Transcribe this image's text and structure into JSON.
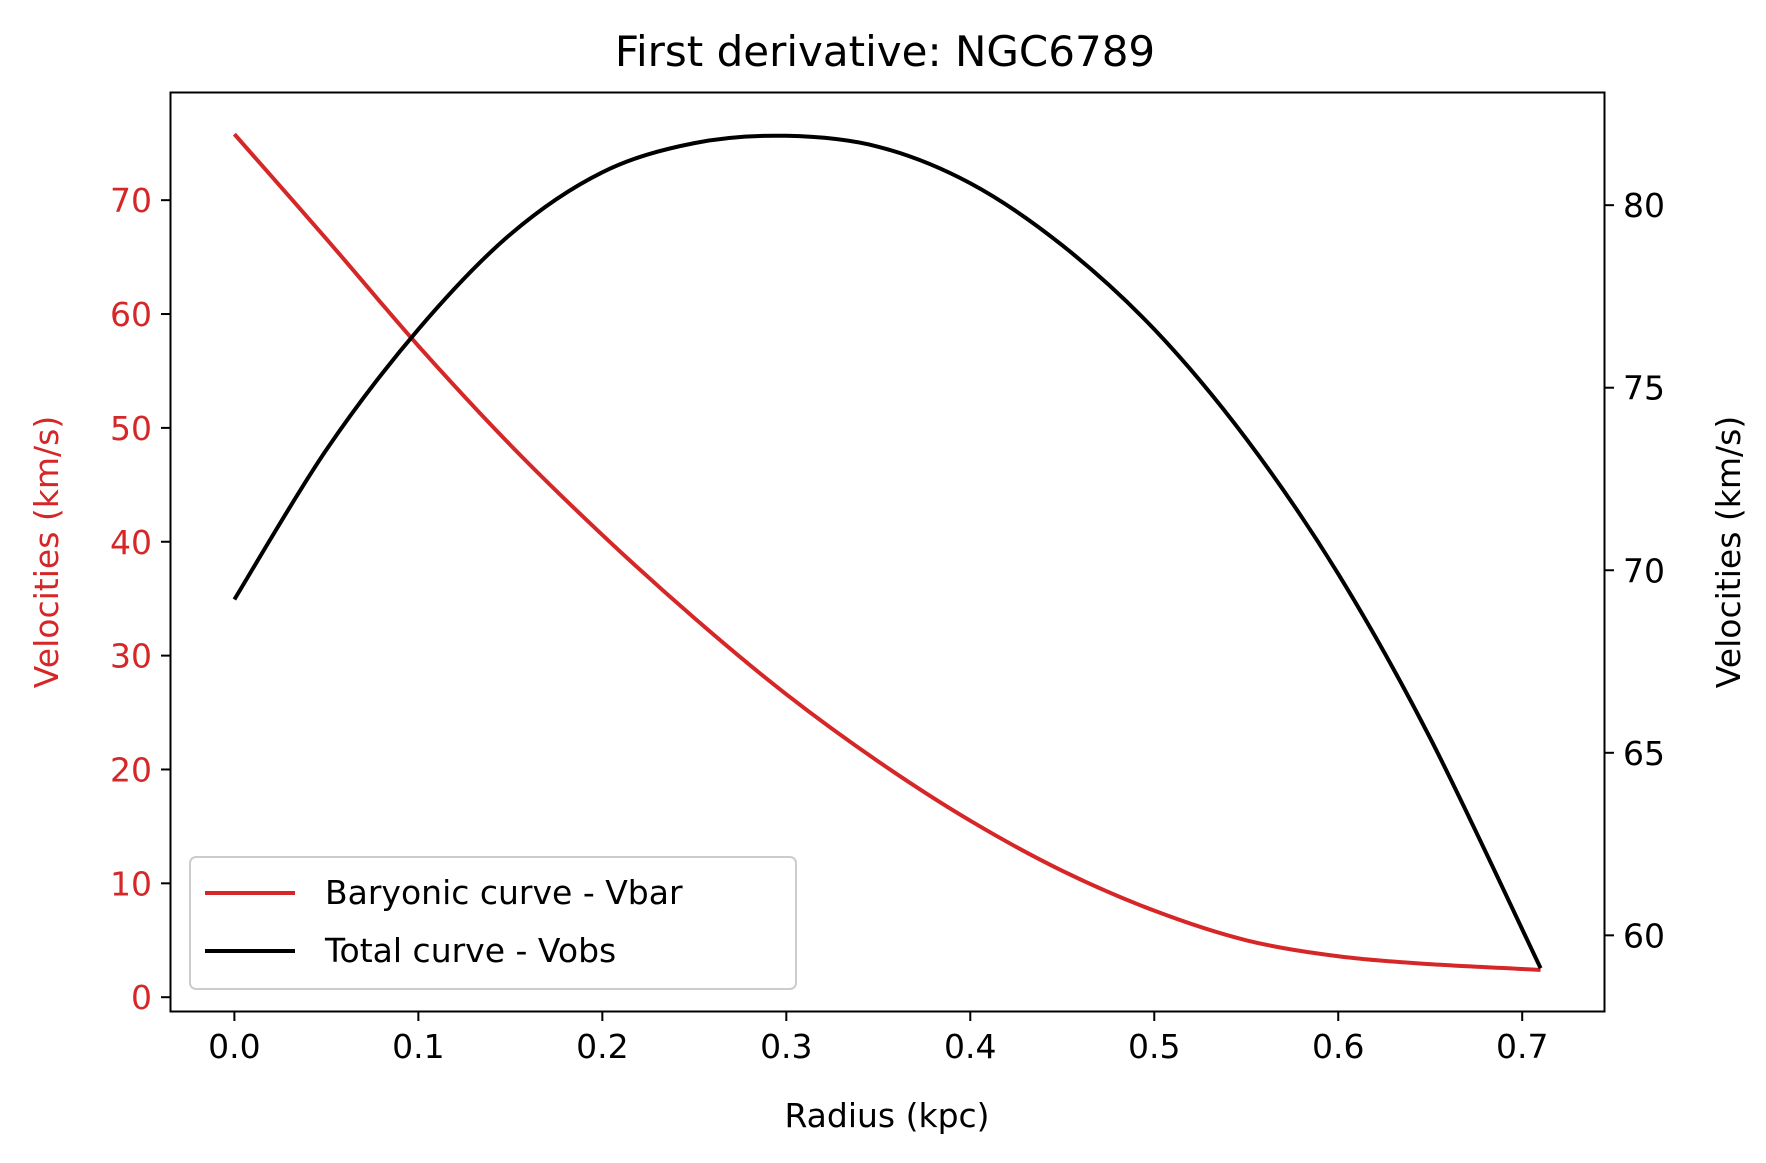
{
  "chart_data": {
    "type": "line",
    "title": "First derivative: NGC6789",
    "xlabel": "Radius (kpc)",
    "ylabel_left": "Velocities (km/s)",
    "ylabel_right": "Velocities (km/s)",
    "xlim": [
      -0.035,
      0.745
    ],
    "ylim_left": [
      -1.3,
      79.5
    ],
    "ylim_right": [
      57.9,
      83.1
    ],
    "x_ticks": [
      "0.0",
      "0.1",
      "0.2",
      "0.3",
      "0.4",
      "0.5",
      "0.6",
      "0.7"
    ],
    "x_tick_values": [
      0.0,
      0.1,
      0.2,
      0.3,
      0.4,
      0.5,
      0.6,
      0.7
    ],
    "y_left_ticks": [
      "0",
      "10",
      "20",
      "30",
      "40",
      "50",
      "60",
      "70"
    ],
    "y_left_tick_values": [
      0,
      10,
      20,
      30,
      40,
      50,
      60,
      70
    ],
    "y_right_ticks": [
      "60",
      "65",
      "70",
      "75",
      "80"
    ],
    "y_right_tick_values": [
      60,
      65,
      70,
      75,
      80
    ],
    "grid": false,
    "legend_position": "lower-left",
    "colors": {
      "left_axis": "#d62728",
      "right_axis": "#000000",
      "vbar": "#d62728",
      "vobs": "#000000"
    },
    "series": [
      {
        "name": "Baryonic curve - Vbar",
        "axis": "left",
        "color": "#d62728",
        "x": [
          0.0,
          0.05,
          0.1,
          0.15,
          0.2,
          0.25,
          0.3,
          0.35,
          0.4,
          0.45,
          0.5,
          0.55,
          0.6,
          0.65,
          0.71
        ],
        "y": [
          75.8,
          66.6,
          57.2,
          48.5,
          40.6,
          33.3,
          26.6,
          20.7,
          15.5,
          11.1,
          7.6,
          5.0,
          3.6,
          2.9,
          2.4
        ]
      },
      {
        "name": "Total curve - Vobs",
        "axis": "right",
        "color": "#000000",
        "x": [
          0.0,
          0.05,
          0.1,
          0.15,
          0.2,
          0.25,
          0.3,
          0.35,
          0.4,
          0.45,
          0.5,
          0.55,
          0.6,
          0.65,
          0.71
        ],
        "y": [
          69.2,
          73.3,
          76.6,
          79.2,
          80.9,
          81.7,
          81.9,
          81.6,
          80.6,
          78.9,
          76.6,
          73.6,
          69.9,
          65.4,
          59.1
        ]
      }
    ]
  }
}
